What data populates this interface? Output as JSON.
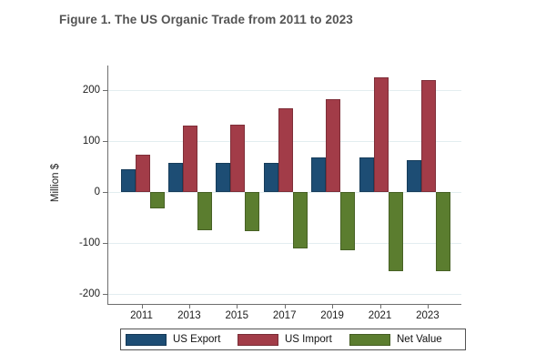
{
  "page": {
    "title": "Figure 1. The US Organic Trade from 2011 to 2023"
  },
  "chart_data": {
    "type": "bar",
    "title": "Figure 1. The US Organic Trade from 2011 to 2023",
    "categories": [
      "2011",
      "2013",
      "2015",
      "2017",
      "2019",
      "2021",
      "2023"
    ],
    "series": [
      {
        "name": "US Export",
        "color": "#1d4d74",
        "values": [
          45,
          58,
          57,
          57,
          68,
          68,
          63
        ]
      },
      {
        "name": "US Import",
        "color": "#a23c48",
        "values": [
          73,
          131,
          132,
          165,
          183,
          225,
          220
        ]
      },
      {
        "name": "Net Value",
        "color": "#5b7d2f",
        "values": [
          -33,
          -75,
          -77,
          -110,
          -115,
          -155,
          -155
        ]
      }
    ],
    "xlabel": "",
    "ylabel": "Million $",
    "yticks": [
      200,
      100,
      0,
      -100,
      -200
    ],
    "ylim": [
      -220,
      248
    ],
    "grid": true,
    "legend_position": "bottom",
    "colors": {
      "gridline": "#e3edf0",
      "axis": "#6e6e6e",
      "title_text": "#545454",
      "tick_text": "#1c1c1c"
    }
  }
}
